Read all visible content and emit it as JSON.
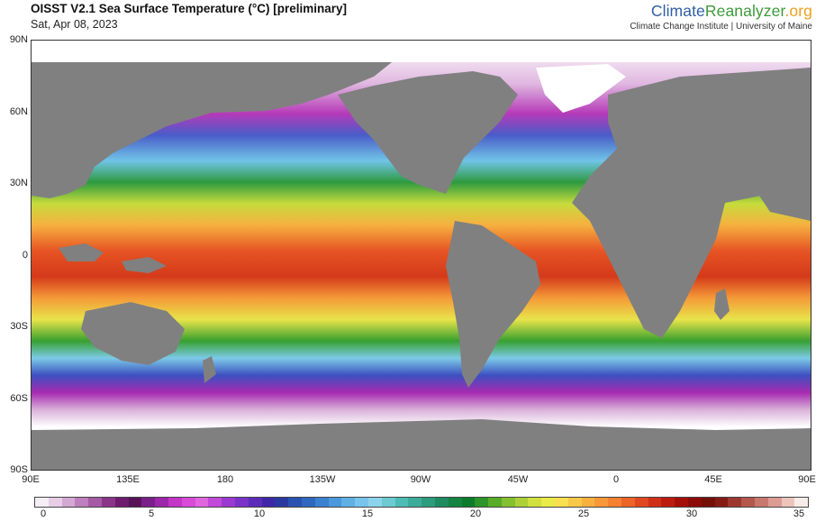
{
  "header": {
    "title": "OISST V2.1 Sea Surface Temperature (°C) [preliminary]",
    "date": "Sat, Apr 08, 2023"
  },
  "brand": {
    "logo_part1": "Climate",
    "logo_part2": "Reanalyzer",
    "logo_part3": ".org",
    "subtitle": "Climate Change Institute | University of Maine"
  },
  "map": {
    "lat_labels": [
      "90N",
      "60N",
      "30N",
      "0",
      "30S",
      "60S",
      "90S"
    ],
    "lon_labels": [
      "90E",
      "135E",
      "180",
      "135W",
      "90W",
      "45W",
      "0",
      "45E",
      "90E"
    ],
    "land_color": "#808080",
    "ice_color": "#ffffff"
  },
  "colorbar": {
    "ticks": [
      "0",
      "5",
      "10",
      "15",
      "20",
      "25",
      "30",
      "35"
    ],
    "colors": [
      "#f5eef5",
      "#e6cfe6",
      "#d3a8d3",
      "#bd7fbd",
      "#a55aa5",
      "#8a358a",
      "#6e1d6e",
      "#561456",
      "#7a1e8a",
      "#9a28a8",
      "#c236c8",
      "#d84bd6",
      "#e066e0",
      "#c24ad8",
      "#9a3ad0",
      "#7a32c8",
      "#5c2cb8",
      "#3e28a8",
      "#2a3aa0",
      "#2a52b0",
      "#3068c0",
      "#3c80d0",
      "#4c98dc",
      "#60b0e4",
      "#78c4ec",
      "#8cd4ec",
      "#6ccad0",
      "#4cbcb4",
      "#3cac98",
      "#2c9c7c",
      "#1e8c60",
      "#148444",
      "#0c7c2c",
      "#2c9428",
      "#58ac28",
      "#84c030",
      "#acd038",
      "#d0e040",
      "#eaea48",
      "#f8e050",
      "#f8c848",
      "#f8b040",
      "#f89838",
      "#f48030",
      "#ec6428",
      "#e04820",
      "#d03018",
      "#bc1c10",
      "#a41008",
      "#8c0c08",
      "#741008",
      "#841c14",
      "#9c3830",
      "#b4584c",
      "#c8786c",
      "#dc9c94",
      "#ecc4bc",
      "#f8ece8"
    ]
  }
}
